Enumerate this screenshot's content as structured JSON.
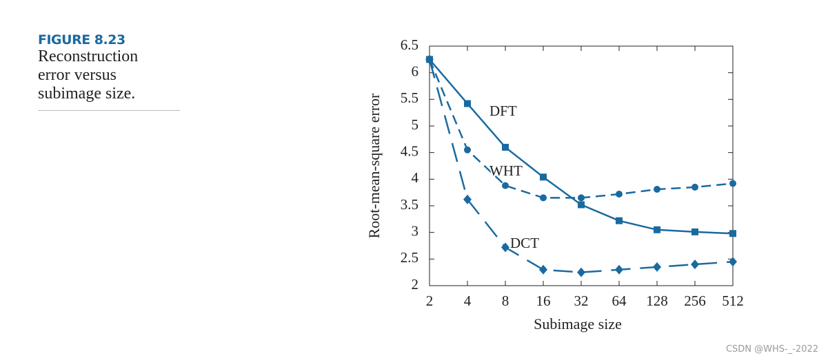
{
  "figure_label": "FIGURE 8.23",
  "caption_lines": [
    "Reconstruction",
    "error versus",
    "subimage size."
  ],
  "watermark": "CSDN @WHS-_-2022",
  "chart_data": {
    "type": "line",
    "xlabel": "Subimage size",
    "ylabel": "Root-mean-square error",
    "categories": [
      "2",
      "4",
      "8",
      "16",
      "32",
      "64",
      "128",
      "256",
      "512"
    ],
    "ylim": [
      2,
      6.5
    ],
    "yticks": [
      2,
      2.5,
      3,
      3.5,
      4,
      4.5,
      5,
      5.5,
      6,
      6.5
    ],
    "series": [
      {
        "name": "DFT",
        "color": "#1a6aa0",
        "marker": "square",
        "dash": "none",
        "values": [
          6.25,
          5.42,
          4.6,
          4.04,
          3.52,
          3.22,
          3.05,
          3.01,
          2.98
        ]
      },
      {
        "name": "WHT",
        "color": "#1a6aa0",
        "marker": "circle",
        "dash": "14,8",
        "values": [
          6.25,
          4.55,
          3.88,
          3.65,
          3.65,
          3.72,
          3.81,
          3.85,
          3.92
        ]
      },
      {
        "name": "DCT",
        "color": "#1a6aa0",
        "marker": "diamond",
        "dash": "28,14",
        "values": [
          6.25,
          3.62,
          2.72,
          2.3,
          2.25,
          2.3,
          2.35,
          2.4,
          2.45
        ]
      }
    ]
  }
}
